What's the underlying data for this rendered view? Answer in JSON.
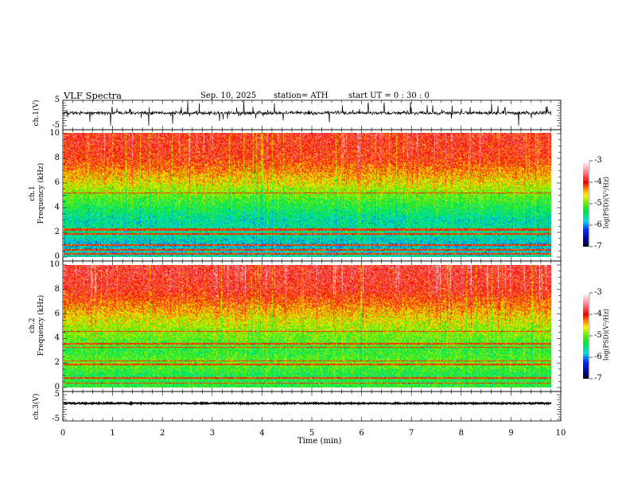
{
  "header": {
    "title": "VLF  Spectra",
    "date": "Sep. 10, 2025",
    "station": "station= ATH",
    "start_ut": "start  UT  =    0  : 30 : 0"
  },
  "chart_data": {
    "type": "heatmap",
    "x_axis": {
      "label": "Time  (min)",
      "range": [
        0,
        10
      ],
      "ticks": [
        "0",
        "1",
        "2",
        "3",
        "4",
        "5",
        "6",
        "7",
        "8",
        "9",
        "10"
      ],
      "data_end": 9.8
    },
    "panels": [
      {
        "name": "ch1 waveform",
        "type": "line",
        "ylabel": "ch.1(V)",
        "ylim": [
          -5,
          5
        ],
        "yticks": [
          "5",
          "-5"
        ]
      },
      {
        "name": "ch1 spectrogram",
        "type": "heatmap",
        "ylabel": "ch.1\nFrequency  (kHz)",
        "ylabel_line1": "ch.1",
        "ylabel_line2": "Frequency  (kHz)",
        "ylim": [
          0,
          10
        ],
        "yticks": [
          "0",
          "2",
          "4",
          "6",
          "8",
          "10"
        ],
        "colorbar": {
          "label": "log(PSD)(V²/Hz)",
          "range": [
            -7,
            -3
          ],
          "ticks": [
            "-3",
            "-4",
            "-5",
            "-6",
            "-7"
          ]
        },
        "profile_logpsd": {
          "freq_khz": [
            0,
            1,
            2,
            3,
            4,
            5,
            6,
            7,
            8,
            10
          ],
          "mean": [
            -5.6,
            -5.8,
            -5.5,
            -5.6,
            -5.3,
            -5.0,
            -4.6,
            -4.3,
            -4.0,
            -3.9
          ]
        },
        "lines_khz": [
          0.3,
          0.6,
          1.0,
          1.9,
          2.2,
          2.3,
          5.2
        ]
      },
      {
        "name": "ch2 spectrogram",
        "type": "heatmap",
        "ylabel_line1": "ch.2",
        "ylabel_line2": "Frequency  (kHz)",
        "ylim": [
          0,
          10
        ],
        "yticks": [
          "0",
          "2",
          "4",
          "6",
          "8",
          "10"
        ],
        "colorbar": {
          "label": "log(PSD)(V²/Hz)",
          "range": [
            -7,
            -3
          ],
          "ticks": [
            "-3",
            "-4",
            "-5",
            "-6",
            "-7"
          ]
        },
        "profile_logpsd": {
          "freq_khz": [
            0,
            1,
            2,
            3,
            4,
            5,
            6,
            7,
            8,
            10
          ],
          "mean": [
            -5.2,
            -5.3,
            -5.0,
            -5.2,
            -5.0,
            -4.8,
            -4.5,
            -4.2,
            -3.9,
            -3.8
          ]
        },
        "lines_khz": [
          0.4,
          0.8,
          1.9,
          2.2,
          3.3,
          3.6,
          4.6
        ]
      },
      {
        "name": "ch3 waveform",
        "type": "line",
        "ylabel": "ch.3(V)",
        "ylim": [
          -5,
          5
        ],
        "yticks": [
          "5",
          "-5"
        ],
        "level": 0.3
      }
    ]
  }
}
